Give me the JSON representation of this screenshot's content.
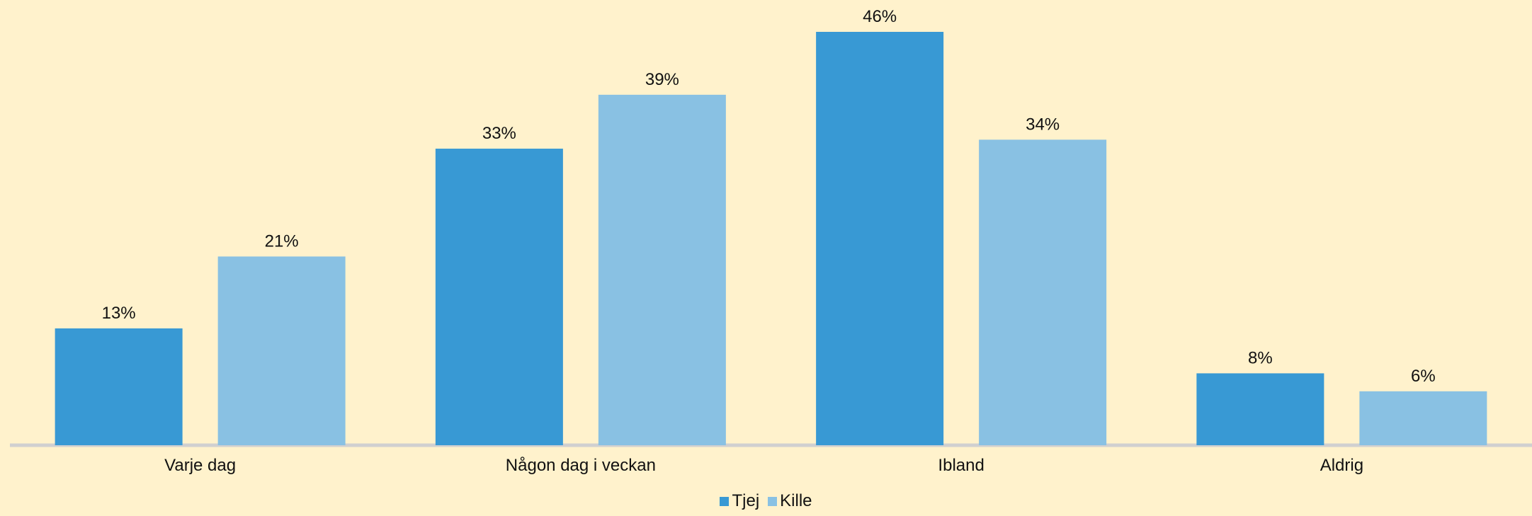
{
  "chart_data": {
    "type": "bar",
    "title": "",
    "xlabel": "",
    "ylabel": "",
    "categories": [
      "Varje dag",
      "Någon dag i veckan",
      "Ibland",
      "Aldrig"
    ],
    "series": [
      {
        "name": "Tjej",
        "values": [
          13,
          33,
          46,
          8
        ],
        "labels": [
          "13%",
          "33%",
          "46%",
          "8%"
        ],
        "color": "#3899D4"
      },
      {
        "name": "Kille",
        "values": [
          21,
          39,
          34,
          6
        ],
        "labels": [
          "21%",
          "39%",
          "34%",
          "6%"
        ],
        "color": "#89C1E3"
      }
    ],
    "ylim": [
      0,
      46
    ],
    "grid": false,
    "legend_position": "bottom-center",
    "background_color": "#FFF2CC",
    "axis_color": "#D0D0D0"
  }
}
